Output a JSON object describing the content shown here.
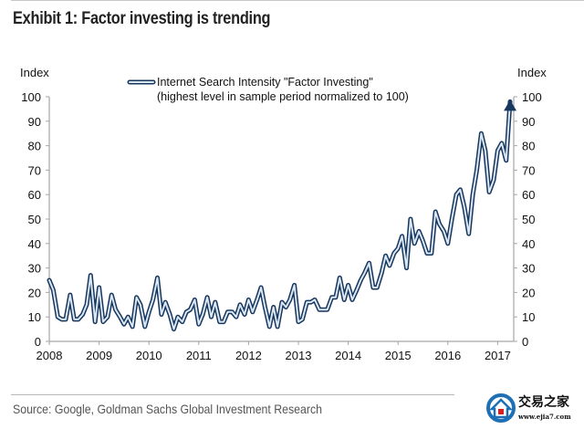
{
  "header": {
    "title": "Exhibit 1: Factor investing is trending"
  },
  "footer": {
    "source": "Source: Google, Goldman Sachs Global Investment Research"
  },
  "watermark": {
    "name": "交易之家",
    "url": "www.ejia7.com",
    "icon": "house-logo-icon"
  },
  "chart_data": {
    "type": "line",
    "title": "Exhibit 1: Factor investing is trending",
    "ylabel_left": "Index",
    "ylabel_right": "Index",
    "xlabel": "",
    "ylim": [
      0,
      100
    ],
    "yticks": [
      0,
      10,
      20,
      30,
      40,
      50,
      60,
      70,
      80,
      90,
      100
    ],
    "xlim": [
      2008,
      2017.6
    ],
    "xticks": [
      "2008",
      "2009",
      "2010",
      "2011",
      "2012",
      "2013",
      "2014",
      "2015",
      "2016",
      "2017"
    ],
    "grid": false,
    "legend": {
      "position": "top-center",
      "entries": [
        "Internet Search Intensity \"Factor Investing\"",
        "(highest level in sample period normalized to 100)"
      ]
    },
    "end_marker": "arrow",
    "series": [
      {
        "name": "Internet Search Intensity \"Factor Investing\"",
        "color": "#17375e",
        "x": [
          2008.0,
          2008.08,
          2008.17,
          2008.25,
          2008.33,
          2008.42,
          2008.5,
          2008.58,
          2008.67,
          2008.75,
          2008.83,
          2008.92,
          2009.0,
          2009.08,
          2009.17,
          2009.25,
          2009.33,
          2009.42,
          2009.5,
          2009.58,
          2009.67,
          2009.75,
          2009.83,
          2009.92,
          2010.0,
          2010.08,
          2010.17,
          2010.25,
          2010.33,
          2010.42,
          2010.5,
          2010.58,
          2010.67,
          2010.75,
          2010.83,
          2010.92,
          2011.0,
          2011.08,
          2011.17,
          2011.25,
          2011.33,
          2011.42,
          2011.5,
          2011.58,
          2011.67,
          2011.75,
          2011.83,
          2011.92,
          2012.0,
          2012.08,
          2012.17,
          2012.25,
          2012.33,
          2012.42,
          2012.5,
          2012.58,
          2012.67,
          2012.75,
          2012.83,
          2012.92,
          2013.0,
          2013.08,
          2013.17,
          2013.25,
          2013.33,
          2013.42,
          2013.5,
          2013.58,
          2013.67,
          2013.75,
          2013.83,
          2013.92,
          2014.0,
          2014.08,
          2014.17,
          2014.25,
          2014.33,
          2014.42,
          2014.5,
          2014.58,
          2014.67,
          2014.75,
          2014.83,
          2014.92,
          2015.0,
          2015.08,
          2015.17,
          2015.25,
          2015.33,
          2015.42,
          2015.5,
          2015.58,
          2015.67,
          2015.75,
          2015.83,
          2015.92,
          2016.0,
          2016.08,
          2016.17,
          2016.25,
          2016.33,
          2016.42,
          2016.5,
          2016.58,
          2016.67,
          2016.75,
          2016.83,
          2016.92,
          2017.0,
          2017.08,
          2017.17,
          2017.25
        ],
        "values": [
          25,
          21,
          10,
          9,
          9,
          19,
          9,
          9,
          11,
          15,
          27,
          8,
          22,
          8,
          10,
          19,
          13,
          10,
          7,
          10,
          6,
          18,
          15,
          6,
          12,
          17,
          26,
          11,
          16,
          11,
          5,
          10,
          8,
          12,
          13,
          17,
          7,
          11,
          18,
          10,
          16,
          8,
          8,
          12,
          12,
          10,
          15,
          11,
          17,
          12,
          17,
          22,
          14,
          6,
          14,
          6,
          16,
          14,
          17,
          23,
          8,
          9,
          16,
          16,
          17,
          13,
          13,
          13,
          18,
          18,
          26,
          17,
          23,
          17,
          21,
          25,
          28,
          32,
          22,
          22,
          28,
          35,
          31,
          36,
          38,
          43,
          30,
          50,
          40,
          45,
          41,
          36,
          36,
          53,
          48,
          45,
          40,
          50,
          60,
          62,
          55,
          44,
          60,
          70,
          85,
          78,
          61,
          66,
          78,
          81,
          74,
          98
        ]
      }
    ]
  }
}
